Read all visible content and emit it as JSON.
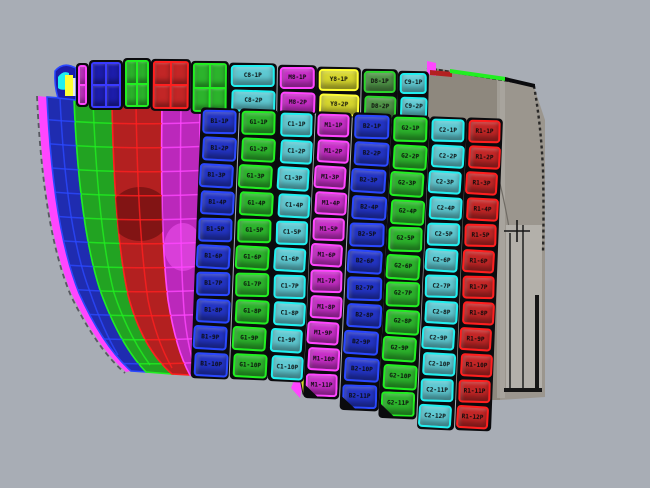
{
  "app": {
    "name": "3d-hull-plating-viewport",
    "background": "#a8adb5"
  },
  "palette": {
    "black": "#0b0b0e",
    "blue": {
      "fill": "#2334c4",
      "line": "#2a48ff",
      "shell": "#1f2cb0"
    },
    "navy": {
      "fill": "#1c1caa",
      "line": "#3a3aff",
      "shell": "#16167e"
    },
    "green": {
      "fill": "#2cb32c",
      "line": "#21ef21",
      "shell": "#22a322"
    },
    "dkgreen": {
      "fill": "#4f9347",
      "line": "#2cd42c",
      "shell": "#3c7a38"
    },
    "cyan": {
      "fill": "#5fc9d2",
      "line": "#20f0f0",
      "shell": "#4db4bc"
    },
    "magenta": {
      "fill": "#c72ec7",
      "line": "#ff46ff",
      "shell": "#bb28bb"
    },
    "red": {
      "fill": "#c22626",
      "line": "#ff1f1f",
      "shell": "#b32020"
    },
    "yellow": {
      "fill": "#d6d62e",
      "line": "#ffff35",
      "shell": "#c8c824"
    },
    "block": {
      "left": "#8e887e",
      "front": "#9b968e",
      "panel": "#b3b0aa",
      "edge": "#6f6b64",
      "ink": "#161616"
    }
  },
  "top_band": {
    "columns": [
      {
        "name": "sheer-magenta-sliver",
        "color": "magenta",
        "labels": []
      },
      {
        "name": "sheer-navy-grid",
        "color": "navy",
        "labels": []
      },
      {
        "name": "sheer-green-grid-1",
        "color": "green",
        "labels": []
      },
      {
        "name": "sheer-red-grid",
        "color": "red",
        "labels": []
      },
      {
        "name": "sheer-green-grid-2",
        "color": "green",
        "labels": []
      },
      {
        "name": "sheer-cyan-1",
        "color": "cyan",
        "labels": [
          "C8-1P",
          "C8-2P"
        ]
      },
      {
        "name": "sheer-magenta-1",
        "color": "magenta",
        "labels": [
          "M8-1P",
          "M8-2P"
        ]
      },
      {
        "name": "sheer-yellow-1",
        "color": "yellow",
        "labels": [
          "Y8-1P",
          "Y8-2P"
        ]
      },
      {
        "name": "sheer-dkgreen-1",
        "color": "dkgreen",
        "labels": [
          "D8-1P",
          "D8-2P"
        ]
      },
      {
        "name": "sheer-cyan-2",
        "color": "cyan",
        "labels": [
          "C9-1P",
          "C9-2P"
        ]
      }
    ]
  },
  "main_array": {
    "columns": [
      {
        "name": "strake-1-blue",
        "color": "blue",
        "labels": [
          "B1-1P",
          "B1-2P",
          "B1-3P",
          "B1-4P",
          "B1-5P",
          "B1-6P",
          "B1-7P",
          "B1-8P",
          "B1-9P",
          "B1-10P"
        ]
      },
      {
        "name": "strake-2-green",
        "color": "green",
        "labels": [
          "G1-1P",
          "G1-2P",
          "G1-3P",
          "G1-4P",
          "G1-5P",
          "G1-6P",
          "G1-7P",
          "G1-8P",
          "G1-9P",
          "G1-10P"
        ]
      },
      {
        "name": "strake-3-cyan",
        "color": "cyan",
        "labels": [
          "C1-1P",
          "C1-2P",
          "C1-3P",
          "C1-4P",
          "C1-5P",
          "C1-6P",
          "C1-7P",
          "C1-8P",
          "C1-9P",
          "C1-10P"
        ]
      },
      {
        "name": "strake-4-magenta",
        "color": "magenta",
        "labels": [
          "M1-1P",
          "M1-2P",
          "M1-3P",
          "M1-4P",
          "M1-5P",
          "M1-6P",
          "M1-7P",
          "M1-8P",
          "M1-9P",
          "M1-10P",
          "M1-11P"
        ]
      },
      {
        "name": "strake-5-blue",
        "color": "blue",
        "labels": [
          "B2-1P",
          "B2-2P",
          "B2-3P",
          "B2-4P",
          "B2-5P",
          "B2-6P",
          "B2-7P",
          "B2-8P",
          "B2-9P",
          "B2-10P",
          "B2-11P"
        ]
      },
      {
        "name": "strake-6-green",
        "color": "green",
        "labels": [
          "G2-1P",
          "G2-2P",
          "G2-3P",
          "G2-4P",
          "G2-5P",
          "G2-6P",
          "G2-7P",
          "G2-8P",
          "G2-9P",
          "G2-10P",
          "G2-11P"
        ]
      },
      {
        "name": "strake-7-cyan",
        "color": "cyan",
        "labels": [
          "C2-1P",
          "C2-2P",
          "C2-3P",
          "C2-4P",
          "C2-5P",
          "C2-6P",
          "C2-7P",
          "C2-8P",
          "C2-9P",
          "C2-10P",
          "C2-11P",
          "C2-12P"
        ]
      },
      {
        "name": "strake-8-red",
        "color": "red",
        "labels": [
          "R1-1P",
          "R1-2P",
          "R1-3P",
          "R1-4P",
          "R1-5P",
          "R1-6P",
          "R1-7P",
          "R1-8P",
          "R1-9P",
          "R1-10P",
          "R1-11P",
          "R1-12P"
        ]
      }
    ]
  },
  "shell": {
    "strakes": [
      "magenta",
      "blue",
      "green",
      "red",
      "magenta"
    ]
  }
}
